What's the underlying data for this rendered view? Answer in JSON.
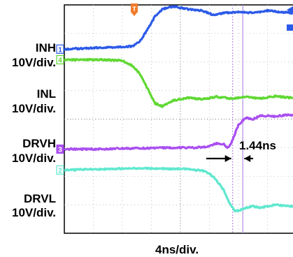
{
  "chart_data": {
    "type": "line",
    "title": "",
    "xlabel": "4ns/div.",
    "ylabel": "",
    "grid": true,
    "x_divisions": 10,
    "y_divisions": 8,
    "ns_per_div": 4,
    "x_unit": "ns",
    "y_unit": "div",
    "xlim": [
      0,
      40
    ],
    "ylim": [
      -4,
      4
    ],
    "series": [
      {
        "name": "INH",
        "scale": "10V/div.",
        "marker": "1",
        "color": "#2c5ae8",
        "x": [
          0,
          9.5,
          10.5,
          11.5,
          12.5,
          13.5,
          15,
          17,
          19,
          20.5,
          22,
          24,
          26,
          28,
          30,
          32,
          34,
          36,
          38,
          40
        ],
        "y": [
          2.45,
          2.55,
          2.75,
          3.15,
          3.6,
          3.85,
          3.95,
          3.85,
          3.8,
          3.65,
          3.72,
          3.75,
          3.72,
          3.8,
          3.75,
          3.7,
          3.75,
          3.72,
          3.75,
          3.75
        ]
      },
      {
        "name": "INL",
        "scale": "10V/div.",
        "marker": "4",
        "color": "#5fd833",
        "x": [
          0,
          5,
          8,
          9.5,
          10.5,
          11.5,
          12.5,
          13.5,
          15,
          17,
          19,
          21,
          23,
          25,
          27,
          29,
          31,
          33,
          35,
          37,
          40
        ],
        "y": [
          2.08,
          2.08,
          2.05,
          1.85,
          1.55,
          1.05,
          0.55,
          0.45,
          0.65,
          0.75,
          0.7,
          0.78,
          0.72,
          0.78,
          0.72,
          0.8,
          0.75,
          0.78,
          0.75,
          0.78,
          0.75
        ]
      },
      {
        "name": "DRVH",
        "scale": "10V/div.",
        "marker": "3",
        "color": "#a94ff0",
        "x": [
          0,
          5,
          10,
          15,
          18,
          20,
          21,
          22,
          22.5,
          23,
          24,
          25,
          26,
          27,
          29,
          31,
          33,
          35,
          37,
          40
        ],
        "y": [
          -1.05,
          -1.05,
          -1.02,
          -1.0,
          -1.0,
          -0.95,
          -0.85,
          -0.88,
          -1.0,
          -0.85,
          -0.2,
          0.05,
          0.0,
          0.12,
          0.1,
          0.15,
          0.12,
          0.18,
          0.15,
          0.2
        ]
      },
      {
        "name": "DRVL",
        "scale": "10V/div.",
        "marker": "2",
        "color": "#5fe8cf",
        "x": [
          0,
          5,
          10,
          15,
          17,
          18,
          19,
          20,
          21,
          22,
          23,
          23.5,
          24,
          25,
          26,
          27,
          29,
          31,
          33,
          35,
          37,
          40
        ],
        "y": [
          -1.78,
          -1.75,
          -1.72,
          -1.74,
          -1.74,
          -1.78,
          -1.8,
          -1.9,
          -2.15,
          -2.5,
          -3.05,
          -3.2,
          -3.2,
          -3.1,
          -3.05,
          -3.1,
          -3.0,
          -3.05,
          -3.02,
          -3.05,
          -3.0,
          -3.0
        ]
      }
    ],
    "markers": [
      {
        "name": "cursor-a",
        "x": 23.2,
        "style": "dotted"
      },
      {
        "name": "cursor-b",
        "x": 24.6,
        "style": "solid"
      }
    ],
    "trigger_marker": "T",
    "annotations": [
      {
        "text": "1.44ns"
      }
    ]
  }
}
